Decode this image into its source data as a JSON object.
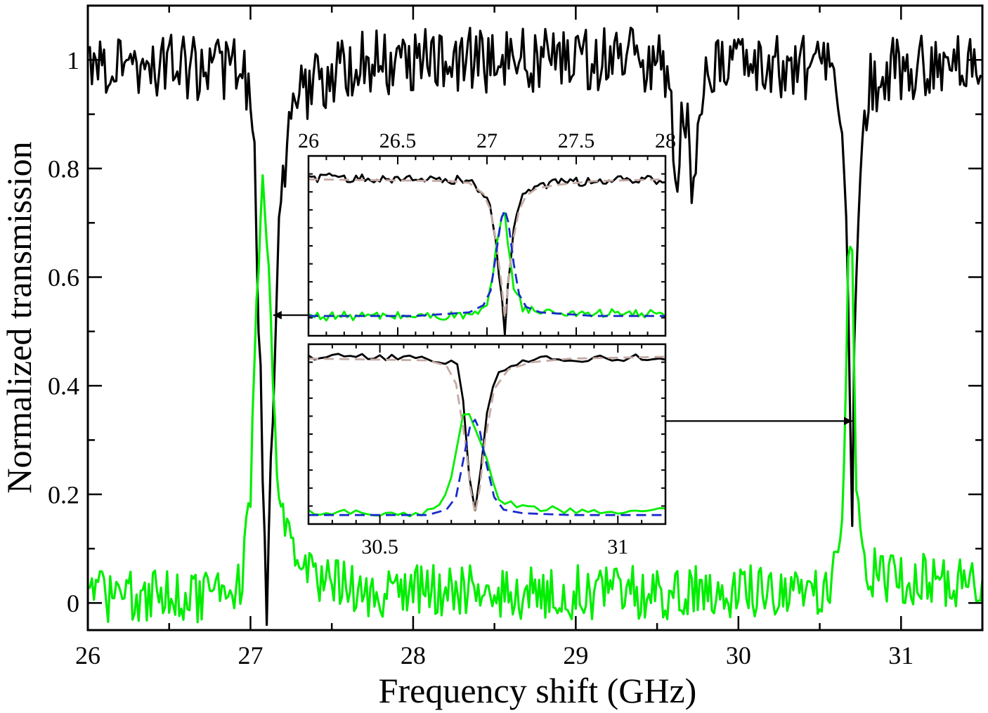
{
  "chart_data": [
    {
      "id": "main",
      "type": "line",
      "xlabel": "Frequency shift (GHz)",
      "ylabel": "Normalized transmission",
      "xlim": [
        26,
        31.5
      ],
      "ylim": [
        -0.05,
        1.1
      ],
      "xticks": [
        26,
        27,
        28,
        29,
        30,
        31
      ],
      "xtick_labels": [
        "26",
        "27",
        "28",
        "29",
        "30",
        "31"
      ],
      "yticks": [
        0,
        0.2,
        0.4,
        0.6,
        0.8,
        1
      ],
      "ytick_labels": [
        "0",
        "0.2",
        "0.4",
        "0.6",
        "0.8",
        "1"
      ],
      "grid": false,
      "series": [
        {
          "color": "#000000",
          "style": "solid",
          "noise": 0.06,
          "x": [
            26.0,
            26.95,
            27.0,
            27.03,
            27.05,
            27.08,
            27.1,
            27.13,
            27.17,
            27.22,
            27.27,
            27.32,
            27.4,
            27.6,
            28.0,
            29.0,
            29.5,
            29.58,
            29.6,
            29.62,
            29.65,
            29.7,
            29.73,
            29.75,
            29.78,
            29.85,
            30.0,
            30.55,
            30.62,
            30.65,
            30.67,
            30.69,
            30.7,
            30.71,
            30.73,
            30.76,
            30.8,
            30.9,
            31.5
          ],
          "y": [
            1.0,
            0.98,
            0.9,
            0.8,
            0.55,
            0.2,
            -0.03,
            0.3,
            0.65,
            0.82,
            0.9,
            0.94,
            0.96,
            0.99,
            1.0,
            1.0,
            1.0,
            0.98,
            0.85,
            0.72,
            0.9,
            0.85,
            0.72,
            0.88,
            0.95,
            1.0,
            1.0,
            0.98,
            0.93,
            0.85,
            0.6,
            0.35,
            0.15,
            0.4,
            0.7,
            0.88,
            0.95,
            0.98,
            1.0
          ]
        },
        {
          "color": "#00ee00",
          "style": "solid",
          "noise": 0.05,
          "x": [
            26.0,
            26.85,
            26.95,
            27.0,
            27.03,
            27.06,
            27.08,
            27.1,
            27.13,
            27.16,
            27.2,
            27.25,
            27.3,
            27.4,
            27.5,
            28.0,
            30.5,
            30.6,
            30.64,
            30.66,
            30.68,
            30.7,
            30.72,
            30.74,
            30.77,
            30.82,
            30.9,
            31.5
          ],
          "y": [
            0.01,
            0.01,
            0.05,
            0.2,
            0.5,
            0.73,
            0.77,
            0.7,
            0.45,
            0.22,
            0.14,
            0.1,
            0.08,
            0.05,
            0.03,
            0.02,
            0.02,
            0.05,
            0.15,
            0.4,
            0.68,
            0.6,
            0.3,
            0.12,
            0.08,
            0.06,
            0.05,
            0.04
          ]
        }
      ],
      "annotations": [
        {
          "type": "arrow",
          "from": [
            28.6,
            0.53
          ],
          "to": [
            27.14,
            0.53
          ]
        },
        {
          "type": "arrow",
          "from": [
            28.6,
            0.335
          ],
          "to": [
            30.7,
            0.335
          ]
        }
      ]
    },
    {
      "id": "inset-top",
      "type": "line",
      "xlim": [
        26,
        28
      ],
      "ylim": [
        0,
        1
      ],
      "xaxis_position": "top",
      "xticks": [
        26,
        26.5,
        27,
        27.5,
        28
      ],
      "xtick_labels": [
        "26",
        "26.5",
        "27",
        "27.5",
        "28"
      ],
      "grid": false,
      "series": [
        {
          "color": "#000000",
          "style": "solid",
          "noise": 0.025,
          "x": [
            26.0,
            26.8,
            26.9,
            26.98,
            27.02,
            27.05,
            27.08,
            27.1,
            27.12,
            27.15,
            27.18,
            27.22,
            27.28,
            27.4,
            27.6,
            28.0
          ],
          "y": [
            0.88,
            0.87,
            0.86,
            0.8,
            0.7,
            0.5,
            0.25,
            0.03,
            0.3,
            0.6,
            0.74,
            0.8,
            0.83,
            0.85,
            0.86,
            0.87
          ]
        },
        {
          "color": "#00ee00",
          "style": "solid",
          "noise": 0.025,
          "x": [
            26.0,
            26.8,
            26.95,
            27.0,
            27.03,
            27.06,
            27.08,
            27.1,
            27.12,
            27.15,
            27.2,
            27.3,
            28.0
          ],
          "y": [
            0.11,
            0.11,
            0.12,
            0.16,
            0.3,
            0.55,
            0.68,
            0.66,
            0.48,
            0.28,
            0.16,
            0.13,
            0.12
          ]
        },
        {
          "color": "#c4aaa4",
          "style": "dashed",
          "noise": 0,
          "x": [
            26.0,
            26.8,
            26.9,
            26.98,
            27.02,
            27.05,
            27.08,
            27.1,
            27.12,
            27.15,
            27.18,
            27.22,
            27.28,
            27.4,
            27.6,
            28.0
          ],
          "y": [
            0.87,
            0.86,
            0.85,
            0.79,
            0.7,
            0.53,
            0.3,
            0.1,
            0.3,
            0.55,
            0.7,
            0.78,
            0.82,
            0.84,
            0.86,
            0.87
          ]
        },
        {
          "color": "#1a2acc",
          "style": "dashed",
          "noise": 0,
          "x": [
            26.0,
            26.6,
            26.9,
            26.98,
            27.02,
            27.05,
            27.08,
            27.1,
            27.12,
            27.15,
            27.18,
            27.22,
            27.3,
            27.6,
            28.0
          ],
          "y": [
            0.11,
            0.11,
            0.13,
            0.17,
            0.25,
            0.45,
            0.65,
            0.7,
            0.63,
            0.4,
            0.23,
            0.16,
            0.13,
            0.11,
            0.11
          ]
        }
      ]
    },
    {
      "id": "inset-bottom",
      "type": "line",
      "xlim": [
        30.35,
        31.1
      ],
      "ylim": [
        0,
        1
      ],
      "xaxis_position": "bottom",
      "xticks": [
        30.5,
        31
      ],
      "xtick_labels": [
        "30.5",
        "31"
      ],
      "grid": false,
      "series": [
        {
          "color": "#000000",
          "style": "solid",
          "noise": 0.02,
          "x": [
            30.35,
            30.6,
            30.65,
            30.67,
            30.68,
            30.69,
            30.7,
            30.71,
            30.72,
            30.74,
            30.77,
            30.82,
            30.9,
            31.1
          ],
          "y": [
            0.93,
            0.92,
            0.9,
            0.85,
            0.5,
            0.2,
            0.07,
            0.22,
            0.55,
            0.8,
            0.88,
            0.91,
            0.92,
            0.93
          ]
        },
        {
          "color": "#00ee00",
          "style": "solid",
          "noise": 0.02,
          "x": [
            30.35,
            30.58,
            30.63,
            30.65,
            30.67,
            30.69,
            30.71,
            30.73,
            30.75,
            30.78,
            30.85,
            31.1
          ],
          "y": [
            0.07,
            0.06,
            0.1,
            0.25,
            0.58,
            0.62,
            0.48,
            0.3,
            0.15,
            0.1,
            0.08,
            0.07
          ]
        },
        {
          "color": "#c4aaa4",
          "style": "dashed",
          "noise": 0,
          "x": [
            30.35,
            30.6,
            30.64,
            30.66,
            30.68,
            30.69,
            30.7,
            30.71,
            30.72,
            30.74,
            30.77,
            30.82,
            30.9,
            31.1
          ],
          "y": [
            0.92,
            0.91,
            0.88,
            0.78,
            0.45,
            0.2,
            0.06,
            0.2,
            0.45,
            0.75,
            0.86,
            0.9,
            0.92,
            0.93
          ]
        },
        {
          "color": "#1a2acc",
          "style": "dashed",
          "noise": 0,
          "x": [
            30.35,
            30.6,
            30.64,
            30.66,
            30.68,
            30.69,
            30.7,
            30.71,
            30.72,
            30.74,
            30.76,
            30.8,
            30.9,
            31.1
          ],
          "y": [
            0.05,
            0.05,
            0.08,
            0.15,
            0.42,
            0.55,
            0.58,
            0.52,
            0.38,
            0.15,
            0.08,
            0.06,
            0.05,
            0.05
          ]
        }
      ]
    }
  ]
}
